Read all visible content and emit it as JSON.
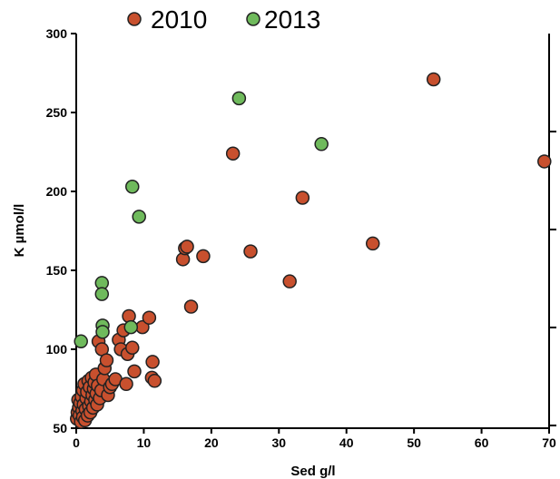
{
  "chart_data": {
    "type": "scatter",
    "xlabel": "Sed g/l",
    "ylabel": "K µmol/l",
    "xlim": [
      0,
      70
    ],
    "ylim": [
      50,
      300
    ],
    "x_ticks": [
      "0",
      "10",
      "20",
      "30",
      "40",
      "50",
      "60",
      "70"
    ],
    "y_ticks": [
      "50",
      "100",
      "150",
      "200",
      "250",
      "300"
    ],
    "grid": false,
    "legend_position": "top",
    "series": [
      {
        "name": "2010",
        "color": "#c8502e",
        "points": [
          [
            0.1,
            56
          ],
          [
            0.2,
            60
          ],
          [
            0.3,
            68
          ],
          [
            0.4,
            63
          ],
          [
            0.5,
            58
          ],
          [
            0.6,
            66
          ],
          [
            0.7,
            54
          ],
          [
            0.8,
            70
          ],
          [
            0.9,
            61
          ],
          [
            1.0,
            57
          ],
          [
            1.0,
            74
          ],
          [
            1.1,
            65
          ],
          [
            1.2,
            78
          ],
          [
            1.3,
            55
          ],
          [
            1.4,
            62
          ],
          [
            1.5,
            69
          ],
          [
            1.6,
            73
          ],
          [
            1.7,
            58
          ],
          [
            1.8,
            80
          ],
          [
            1.9,
            64
          ],
          [
            2.0,
            76
          ],
          [
            2.1,
            60
          ],
          [
            2.2,
            67
          ],
          [
            2.3,
            82
          ],
          [
            2.4,
            71
          ],
          [
            2.5,
            63
          ],
          [
            2.6,
            75
          ],
          [
            2.7,
            79
          ],
          [
            2.8,
            68
          ],
          [
            2.9,
            84
          ],
          [
            3.0,
            72
          ],
          [
            3.1,
            65
          ],
          [
            3.2,
            77
          ],
          [
            3.3,
            105
          ],
          [
            3.5,
            69
          ],
          [
            3.7,
            74
          ],
          [
            3.8,
            100
          ],
          [
            4.0,
            81
          ],
          [
            4.2,
            88
          ],
          [
            4.5,
            93
          ],
          [
            4.7,
            71
          ],
          [
            5.0,
            76
          ],
          [
            5.3,
            78
          ],
          [
            5.8,
            81
          ],
          [
            6.3,
            106
          ],
          [
            6.6,
            100
          ],
          [
            7.0,
            112
          ],
          [
            7.4,
            78
          ],
          [
            7.6,
            97
          ],
          [
            7.8,
            121
          ],
          [
            8.3,
            101
          ],
          [
            8.6,
            86
          ],
          [
            9.8,
            114
          ],
          [
            10.8,
            120
          ],
          [
            11.2,
            82
          ],
          [
            11.3,
            92
          ],
          [
            11.6,
            80
          ],
          [
            15.8,
            157
          ],
          [
            16.1,
            164
          ],
          [
            16.4,
            165
          ],
          [
            17.0,
            127
          ],
          [
            18.8,
            159
          ],
          [
            23.2,
            224
          ],
          [
            25.8,
            162
          ],
          [
            31.6,
            143
          ],
          [
            33.5,
            196
          ],
          [
            43.9,
            167
          ],
          [
            52.9,
            271
          ],
          [
            69.3,
            219
          ]
        ]
      },
      {
        "name": "2013",
        "color": "#6fba5c",
        "points": [
          [
            0.7,
            105
          ],
          [
            3.8,
            142
          ],
          [
            3.8,
            135
          ],
          [
            3.9,
            115
          ],
          [
            3.9,
            111
          ],
          [
            8.1,
            114
          ],
          [
            8.3,
            203
          ],
          [
            9.3,
            184
          ],
          [
            24.1,
            259
          ],
          [
            36.3,
            230
          ]
        ]
      }
    ]
  }
}
